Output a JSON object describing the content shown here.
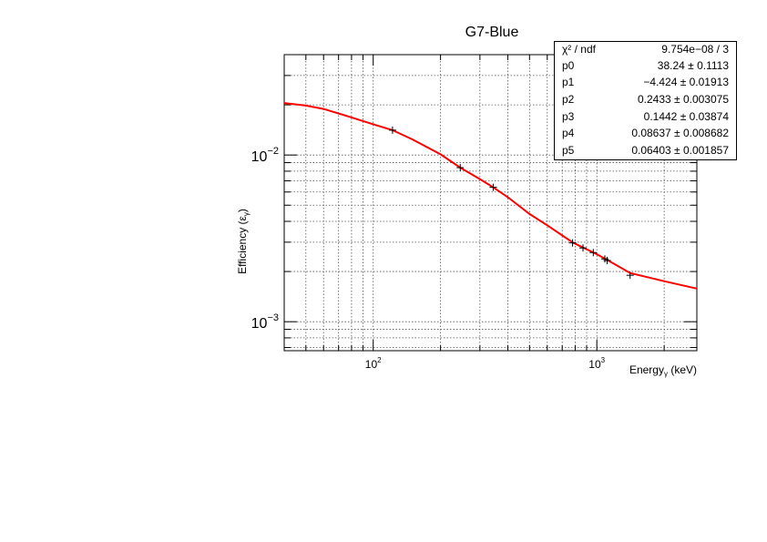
{
  "chart_data": {
    "type": "scatter",
    "title": "G7-Blue",
    "xlabel": "Energy_γ (keV)",
    "ylabel": "Efficiency (ε_γ)",
    "xscale": "log",
    "yscale": "log",
    "xlim": [
      40,
      2800
    ],
    "ylim": [
      0.00067,
      0.04
    ],
    "grid": true,
    "x_ticks": [
      {
        "value": 100,
        "base": "10",
        "exp": "2"
      },
      {
        "value": 1000,
        "base": "10",
        "exp": "3"
      }
    ],
    "y_ticks": [
      {
        "value": 0.01,
        "base": "10",
        "exp": "−2"
      },
      {
        "value": 0.001,
        "base": "10",
        "exp": "−3"
      }
    ],
    "points": [
      {
        "x": 122,
        "y": 0.0141
      },
      {
        "x": 245,
        "y": 0.0084
      },
      {
        "x": 344,
        "y": 0.0064
      },
      {
        "x": 779,
        "y": 0.00297
      },
      {
        "x": 867,
        "y": 0.00277
      },
      {
        "x": 964,
        "y": 0.0026
      },
      {
        "x": 1086,
        "y": 0.00238
      },
      {
        "x": 1112,
        "y": 0.00233
      },
      {
        "x": 1408,
        "y": 0.0019
      }
    ],
    "fit_curve": {
      "color": "#ff0000",
      "points": [
        {
          "x": 40,
          "y": 0.0205
        },
        {
          "x": 50,
          "y": 0.0198
        },
        {
          "x": 60,
          "y": 0.0189
        },
        {
          "x": 80,
          "y": 0.0168
        },
        {
          "x": 100,
          "y": 0.0153
        },
        {
          "x": 122,
          "y": 0.0141
        },
        {
          "x": 150,
          "y": 0.0124
        },
        {
          "x": 200,
          "y": 0.0101
        },
        {
          "x": 245,
          "y": 0.0084
        },
        {
          "x": 300,
          "y": 0.00717
        },
        {
          "x": 344,
          "y": 0.0064
        },
        {
          "x": 400,
          "y": 0.00558
        },
        {
          "x": 500,
          "y": 0.00443
        },
        {
          "x": 600,
          "y": 0.00379
        },
        {
          "x": 779,
          "y": 0.00299
        },
        {
          "x": 1000,
          "y": 0.00254
        },
        {
          "x": 1112,
          "y": 0.00235
        },
        {
          "x": 1408,
          "y": 0.00196
        },
        {
          "x": 2000,
          "y": 0.00175
        },
        {
          "x": 2800,
          "y": 0.00158
        }
      ]
    },
    "stats": [
      {
        "name": "χ² / ndf",
        "value": "9.754e−08 / 3"
      },
      {
        "name": "p0",
        "value": "38.24 ± 0.1113"
      },
      {
        "name": "p1",
        "value": "−4.424 ± 0.01913"
      },
      {
        "name": "p2",
        "value": "0.2433 ± 0.003075"
      },
      {
        "name": "p3",
        "value": "0.1442 ± 0.03874"
      },
      {
        "name": "p4",
        "value": "0.08637 ± 0.008682"
      },
      {
        "name": "p5",
        "value": "0.06403 ± 0.001857"
      }
    ]
  }
}
